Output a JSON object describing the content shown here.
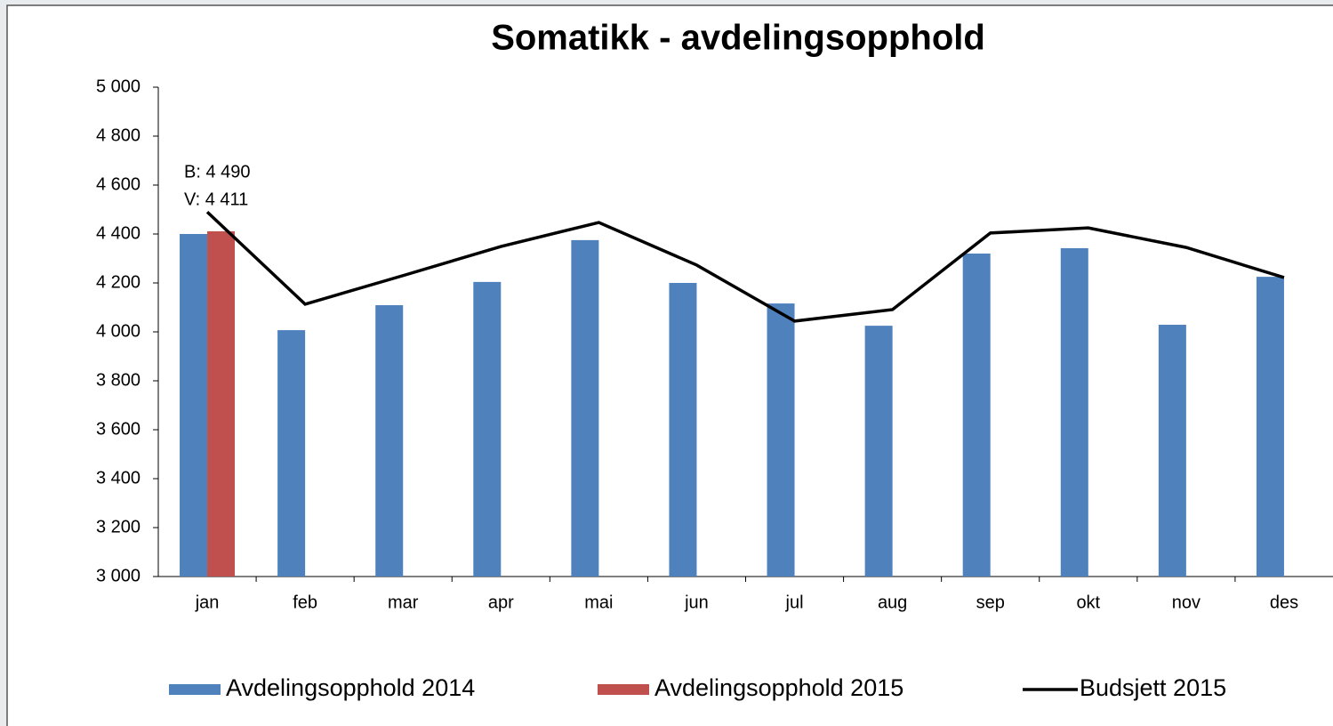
{
  "chart_data": {
    "type": "bar_line",
    "title": "Somatikk - avdelingsopphold",
    "categories": [
      "jan",
      "feb",
      "mar",
      "apr",
      "mai",
      "jun",
      "jul",
      "aug",
      "sep",
      "okt",
      "nov",
      "des"
    ],
    "series": [
      {
        "name": "Avdelingsopphold 2014",
        "type": "bar",
        "color": "#4f81bd",
        "values": [
          4400,
          4007,
          4109,
          4204,
          4375,
          4200,
          4116,
          4025,
          4320,
          4342,
          4029,
          4225
        ]
      },
      {
        "name": "Avdelingsopphold 2015",
        "type": "bar",
        "color": "#c0504d",
        "values": [
          4411,
          null,
          null,
          null,
          null,
          null,
          null,
          null,
          null,
          null,
          null,
          null
        ]
      },
      {
        "name": "Budsjett 2015",
        "type": "line",
        "color": "#000000",
        "values": [
          4490,
          4113,
          4230,
          4349,
          4447,
          4273,
          4044,
          4091,
          4404,
          4425,
          4345,
          4222
        ]
      }
    ],
    "annotations": [
      "B: 4 490",
      "V: 4 411"
    ],
    "ylim": [
      3000,
      5000
    ],
    "yticks": [
      {
        "value": 3000,
        "label": "3 000"
      },
      {
        "value": 3200,
        "label": "3 200"
      },
      {
        "value": 3400,
        "label": "3 400"
      },
      {
        "value": 3600,
        "label": "3 600"
      },
      {
        "value": 3800,
        "label": "3 800"
      },
      {
        "value": 4000,
        "label": "4 000"
      },
      {
        "value": 4200,
        "label": "4 200"
      },
      {
        "value": 4400,
        "label": "4 400"
      },
      {
        "value": 4600,
        "label": "4 600"
      },
      {
        "value": 4800,
        "label": "4 800"
      },
      {
        "value": 5000,
        "label": "5 000"
      }
    ],
    "grid": false,
    "legend": "bottom"
  }
}
